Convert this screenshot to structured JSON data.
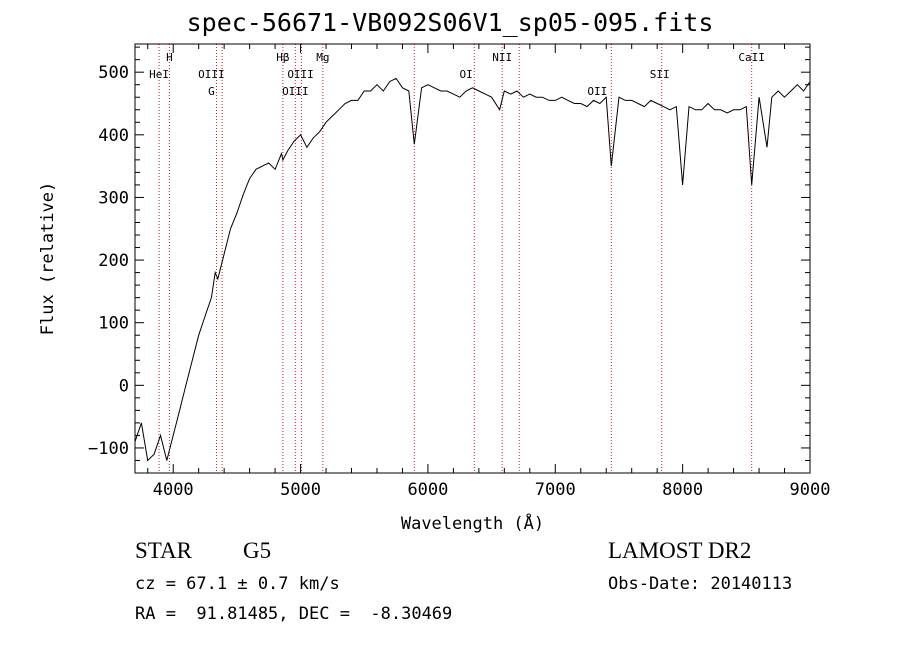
{
  "chart_data": {
    "type": "line",
    "title": "spec-56671-VB092S06V1_sp05-095.fits",
    "xlabel": "Wavelength (Å)",
    "ylabel": "Flux (relative)",
    "xlim": [
      3700,
      9000
    ],
    "ylim": [
      -140,
      545
    ],
    "x_ticks": [
      4000,
      5000,
      6000,
      7000,
      8000,
      9000
    ],
    "x_tick_labels": [
      "4000",
      "5000",
      "6000",
      "7000",
      "8000",
      "9000"
    ],
    "y_ticks": [
      -100,
      0,
      100,
      200,
      300,
      400,
      500
    ],
    "y_tick_labels": [
      "−100",
      "0",
      "100",
      "200",
      "300",
      "400",
      "500"
    ],
    "grid": false,
    "series": [
      {
        "x": [
          3700,
          3750,
          3800,
          3850,
          3900,
          3950,
          4000,
          4050,
          4100,
          4150,
          4200,
          4250,
          4300,
          4330,
          4350,
          4400,
          4450,
          4500,
          4550,
          4600,
          4650,
          4700,
          4750,
          4800,
          4850,
          4861,
          4900,
          4950,
          5000,
          5050,
          5100,
          5150,
          5200,
          5250,
          5300,
          5350,
          5400,
          5450,
          5500,
          5550,
          5600,
          5650,
          5700,
          5750,
          5800,
          5850,
          5893,
          5950,
          6000,
          6050,
          6100,
          6150,
          6200,
          6250,
          6300,
          6350,
          6400,
          6450,
          6500,
          6563,
          6600,
          6650,
          6700,
          6750,
          6800,
          6850,
          6900,
          6950,
          7000,
          7050,
          7100,
          7150,
          7200,
          7250,
          7300,
          7350,
          7400,
          7440,
          7500,
          7550,
          7600,
          7650,
          7700,
          7750,
          7800,
          7850,
          7900,
          7950,
          8000,
          8050,
          8100,
          8150,
          8200,
          8250,
          8300,
          8350,
          8400,
          8450,
          8500,
          8542,
          8600,
          8662,
          8700,
          8750,
          8800,
          8850,
          8900,
          8950,
          9000
        ],
        "values": [
          -90,
          -60,
          -120,
          -110,
          -80,
          -120,
          -80,
          -40,
          0,
          40,
          80,
          110,
          140,
          180,
          170,
          210,
          250,
          275,
          305,
          330,
          345,
          350,
          355,
          345,
          370,
          360,
          375,
          390,
          400,
          380,
          395,
          405,
          420,
          430,
          440,
          450,
          455,
          455,
          470,
          470,
          480,
          470,
          485,
          490,
          475,
          470,
          385,
          475,
          480,
          475,
          470,
          470,
          465,
          460,
          470,
          475,
          470,
          465,
          460,
          440,
          470,
          465,
          470,
          460,
          465,
          460,
          460,
          455,
          455,
          460,
          455,
          450,
          450,
          445,
          455,
          450,
          460,
          350,
          460,
          455,
          455,
          450,
          445,
          455,
          450,
          445,
          440,
          445,
          320,
          445,
          440,
          440,
          450,
          440,
          440,
          435,
          440,
          440,
          445,
          320,
          460,
          380,
          460,
          470,
          460,
          470,
          480,
          470,
          485
        ]
      }
    ],
    "line_markers": [
      {
        "label": "HeI",
        "x": 3889,
        "row": 2
      },
      {
        "label": "H",
        "x": 3970,
        "row": 1
      },
      {
        "label": "OIII",
        "x": 4300,
        "row": 2
      },
      {
        "label": "G",
        "x": 4300,
        "row": 3
      },
      {
        "label": "Hβ",
        "x": 4861,
        "row": 1
      },
      {
        "label": "OIII",
        "x": 5000,
        "row": 2
      },
      {
        "label": "OIII",
        "x": 4959,
        "row": 3
      },
      {
        "label": "Mg",
        "x": 5175,
        "row": 1
      },
      {
        "label": "OI",
        "x": 6300,
        "row": 2
      },
      {
        "label": "NII",
        "x": 6583,
        "row": 1
      },
      {
        "label": "OII",
        "x": 7330,
        "row": 3
      },
      {
        "label": "SII",
        "x": 7820,
        "row": 2
      },
      {
        "label": "CaII",
        "x": 8542,
        "row": 1
      }
    ],
    "marker_lines_x": [
      3889,
      3970,
      4340,
      4384,
      4861,
      4959,
      5007,
      5175,
      5893,
      6364,
      6583,
      6717,
      7440,
      7836,
      8542
    ]
  },
  "footer": {
    "object_type": "STAR",
    "subclass": "G5",
    "survey": "LAMOST DR2",
    "cz": "cz = 67.1 ± 0.7 km/s",
    "obs_date": "Obs-Date: 20140113",
    "coords": "RA =  91.81485, DEC =  -8.30469"
  }
}
